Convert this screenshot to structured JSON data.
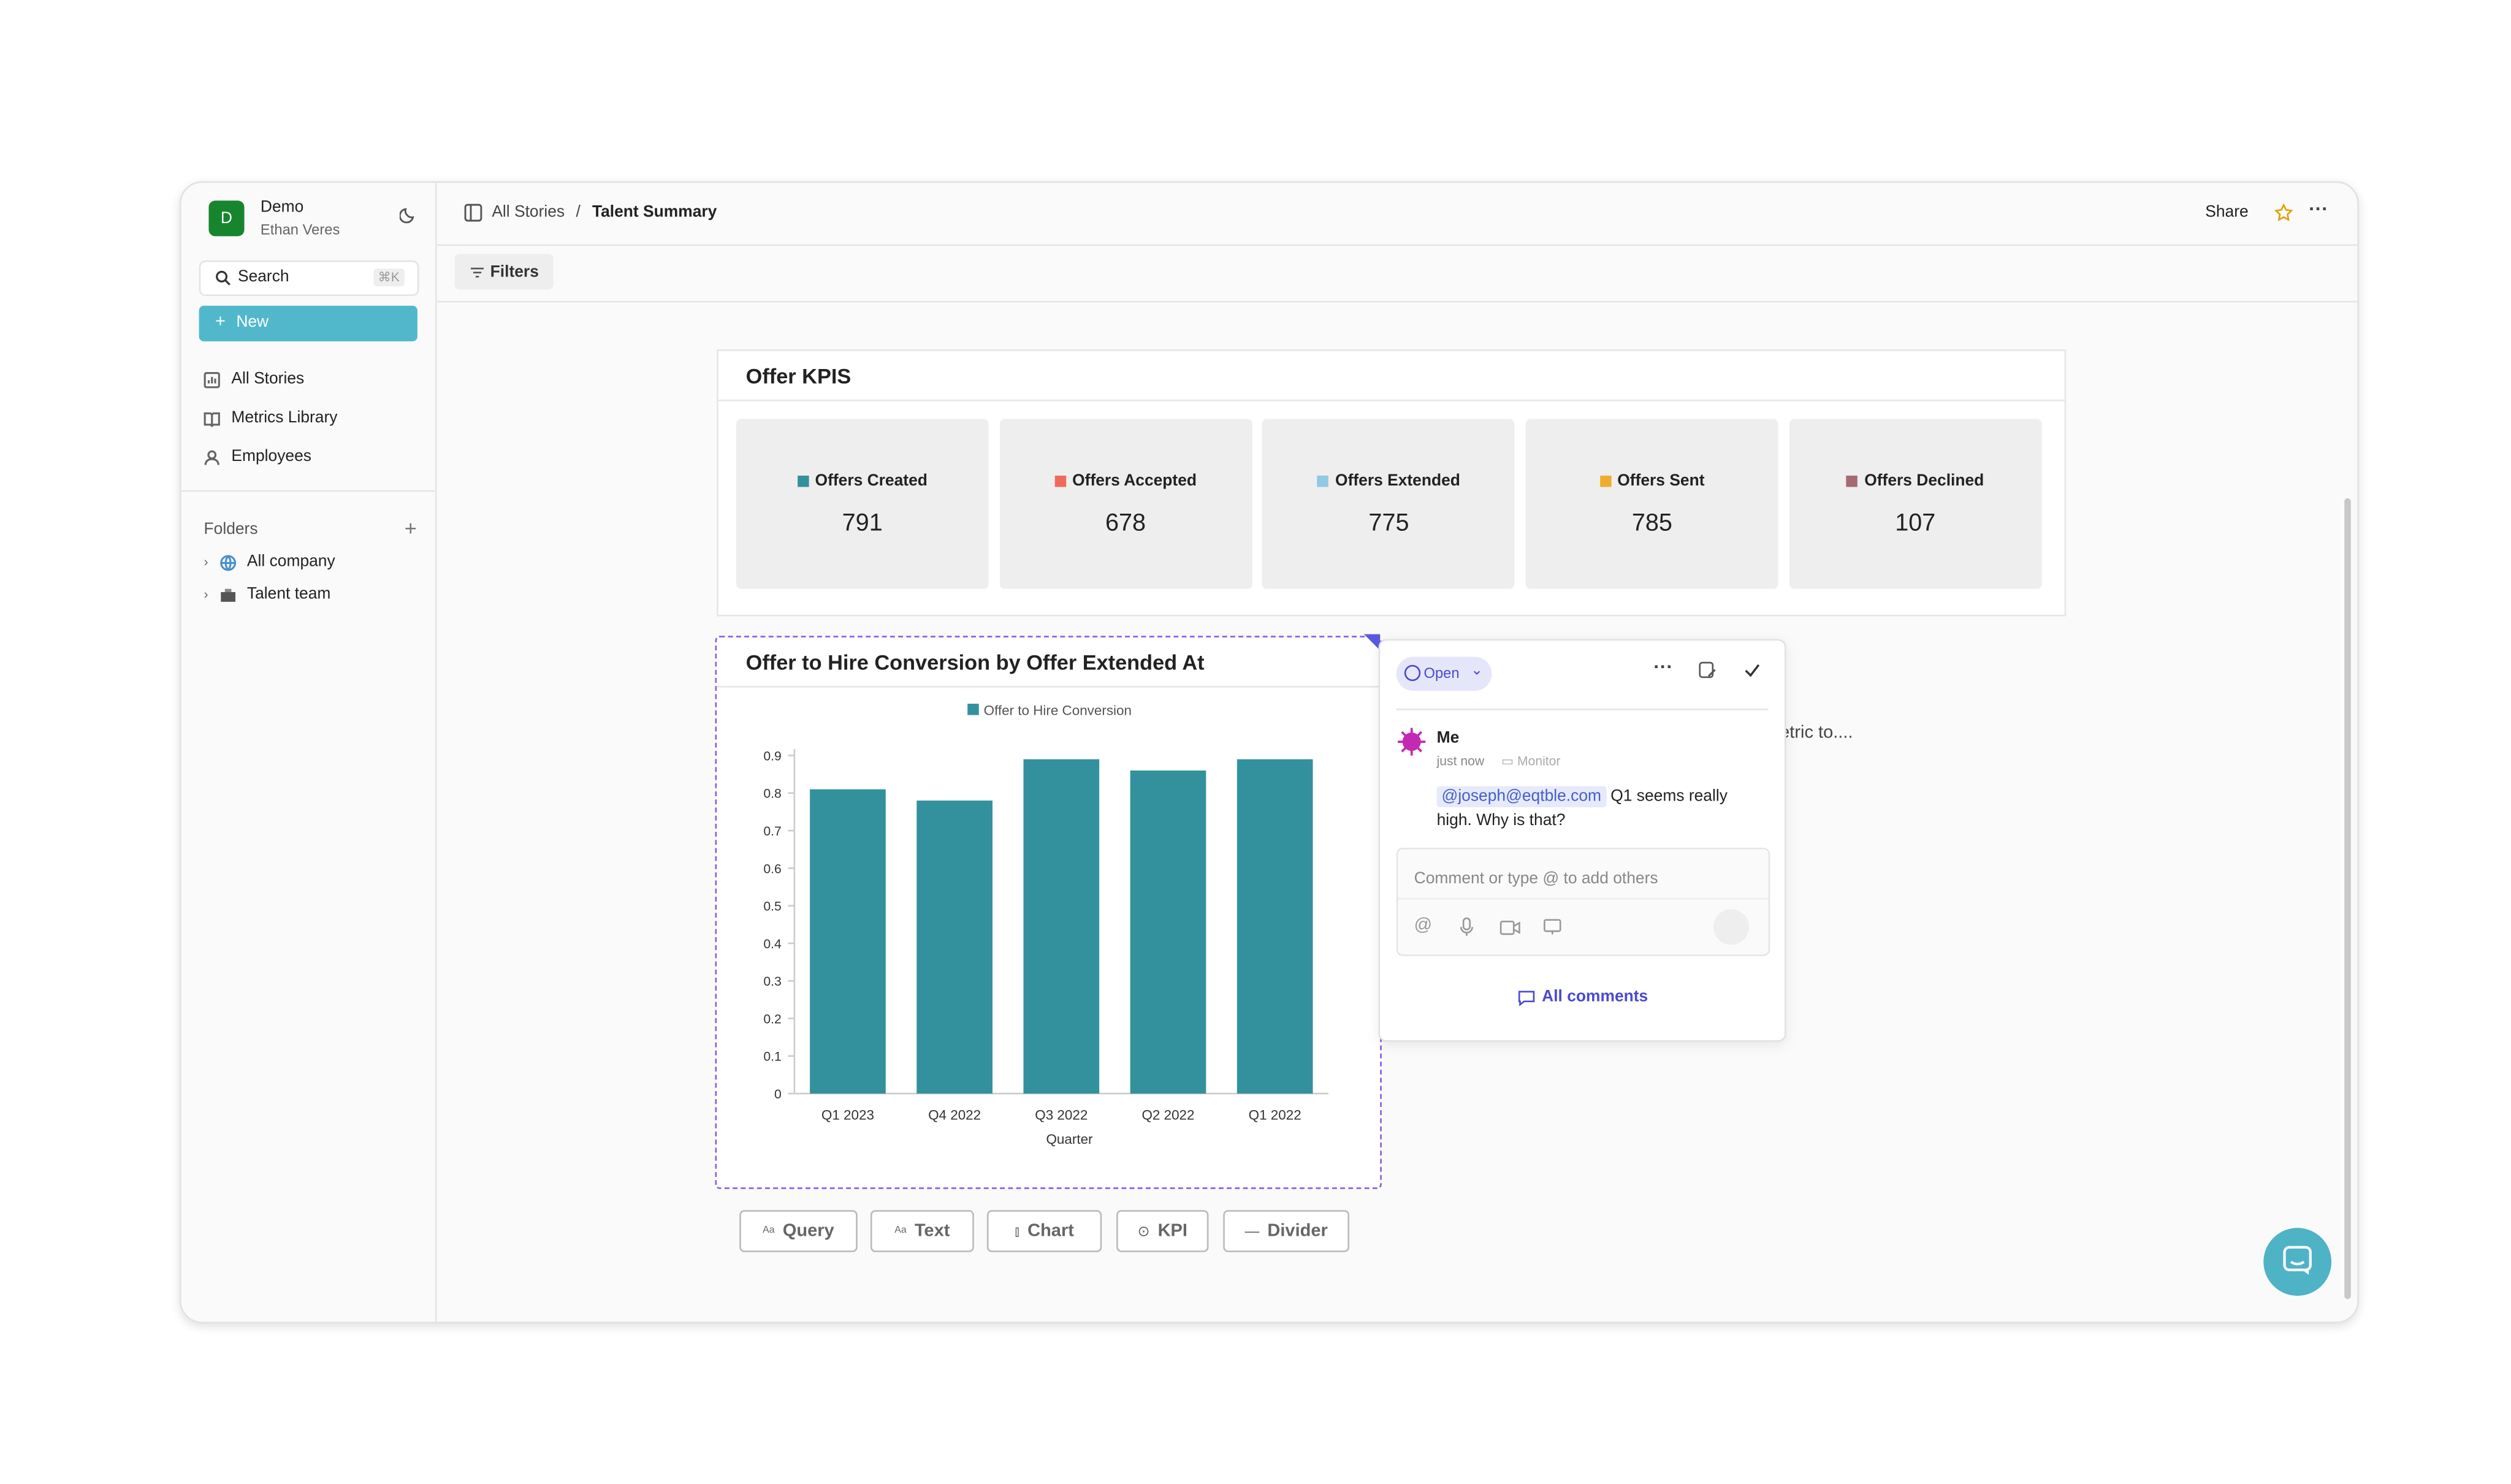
{
  "sidebar": {
    "avatar": "D",
    "workspace": "Demo",
    "user": "Ethan Veres",
    "search": "Search",
    "shortcut": "⌘K",
    "new": "New",
    "nav": [
      "All Stories",
      "Metrics Library",
      "Employees"
    ],
    "folders_title": "Folders",
    "folders": [
      "All company",
      "Talent team"
    ]
  },
  "header": {
    "breadcrumb": [
      "All Stories",
      "Talent Summary"
    ],
    "separator": "/",
    "share": "Share"
  },
  "filters": "Filters",
  "kpi_section": {
    "title": "Offer KPIS",
    "cards": [
      {
        "label": "Offers Created",
        "value": 791,
        "color": "#33919e"
      },
      {
        "label": "Offers Accepted",
        "value": 678,
        "color": "#ee6b5b"
      },
      {
        "label": "Offers Extended",
        "value": 775,
        "color": "#8fc9e2"
      },
      {
        "label": "Offers Sent",
        "value": 785,
        "color": "#f0ad2c"
      },
      {
        "label": "Offers Declined",
        "value": 107,
        "color": "#a66b72"
      }
    ]
  },
  "chart_data": {
    "type": "bar",
    "title": "Offer to Hire Conversion by Offer Extended At",
    "categories": [
      "Q1 2023",
      "Q4 2022",
      "Q3 2022",
      "Q2 2022",
      "Q1 2022"
    ],
    "series": [
      {
        "name": "Offer to Hire Conversion",
        "color": "#33919e",
        "values": [
          0.81,
          0.78,
          0.89,
          0.86,
          0.89
        ]
      }
    ],
    "ylim": [
      0,
      0.9
    ],
    "yticks": [
      0,
      0.1,
      0.2,
      0.3,
      0.4,
      0.5,
      0.6,
      0.7,
      0.8,
      0.9
    ],
    "xlabel": "Quarter",
    "legend": "top"
  },
  "background_text": "etric to....",
  "comment": {
    "status": "Open",
    "author": "Me",
    "time": "just now",
    "source": "Monitor",
    "mention": "@joseph@eqtble.com",
    "text": "Q1 seems really high. Why is that?",
    "placeholder": "Comment or type @ to add others",
    "all_comments": "All comments"
  },
  "toolbar": [
    "Query",
    "Text",
    "Chart",
    "KPI",
    "Divider"
  ]
}
